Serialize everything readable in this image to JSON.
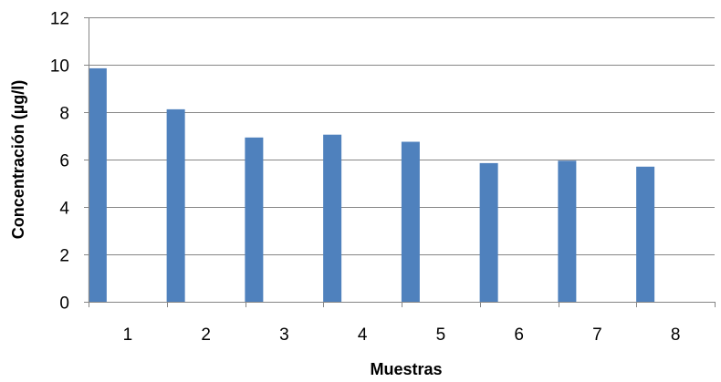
{
  "chart_data": {
    "type": "bar",
    "categories": [
      "1",
      "2",
      "3",
      "4",
      "5",
      "6",
      "7",
      "8"
    ],
    "values": [
      9.85,
      8.12,
      6.93,
      7.05,
      6.75,
      5.85,
      5.95,
      5.7
    ],
    "title": "",
    "xlabel": "Muestras",
    "ylabel": "Concentración (µg/l)",
    "ylim": [
      0,
      12
    ],
    "yticks": [
      "0",
      "2",
      "4",
      "6",
      "8",
      "10",
      "12"
    ],
    "grid": "horizontal",
    "legend": "none",
    "bar_color": "#4f81bd"
  }
}
